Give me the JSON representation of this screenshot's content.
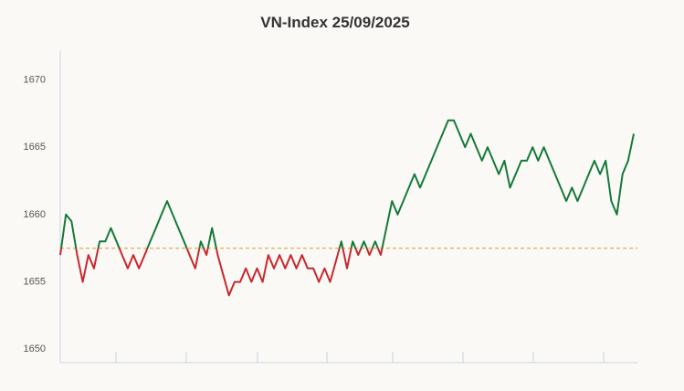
{
  "chart_data": {
    "type": "line",
    "title": "VN-Index 25/09/2025",
    "series": [
      {
        "name": null,
        "values": [
          1657,
          1660,
          1659.5,
          1657,
          1655,
          1657,
          1656,
          1658,
          1658,
          1659,
          1658,
          1657,
          1656,
          1657,
          1656,
          1657,
          1658,
          1659,
          1660,
          1661,
          1660,
          1659,
          1658,
          1657,
          1656,
          1658,
          1657,
          1659,
          1657,
          1655.5,
          1654,
          1655,
          1655,
          1656,
          1655,
          1656,
          1655,
          1657,
          1656,
          1657,
          1656,
          1657,
          1656,
          1657,
          1656,
          1656,
          1655,
          1656,
          1655,
          1656.5,
          1658,
          1656,
          1658,
          1657,
          1658,
          1657,
          1658,
          1657,
          1659,
          1661,
          1660,
          1661,
          1662,
          1663,
          1662,
          1663,
          1664,
          1665,
          1666,
          1667,
          1667,
          1666,
          1665,
          1666,
          1665,
          1664,
          1665,
          1664,
          1663,
          1664,
          1662,
          1663,
          1664,
          1664,
          1665,
          1664,
          1665,
          1664,
          1663,
          1662,
          1661,
          1662,
          1661,
          1662,
          1663,
          1664,
          1663,
          1664,
          1661,
          1660,
          1663,
          1664,
          1666
        ]
      }
    ],
    "baseline": 1657.5,
    "up_color": "#16793a",
    "down_color": "#c8282e",
    "baseline_color": "#e0952a",
    "ylim": [
      1649,
      1672.2
    ],
    "yticks": [
      1650,
      1655,
      1660,
      1665,
      1670
    ],
    "grid": false
  }
}
